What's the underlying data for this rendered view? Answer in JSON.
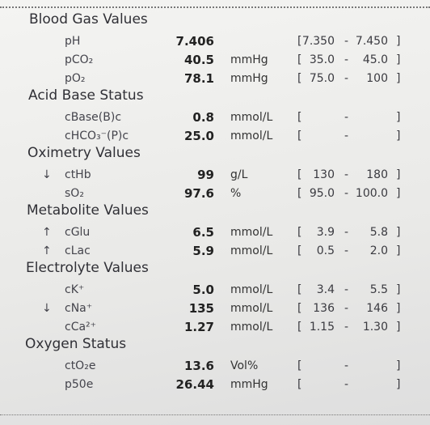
{
  "sections": [
    {
      "title": "Blood Gas Values",
      "rows": [
        {
          "label": "pH",
          "value": "7.406",
          "low": "7.350",
          "high": "7.450"
        },
        {
          "label": "pCO₂",
          "value": "40.5",
          "unit": "mmHg",
          "low": "35.0",
          "high": "45.0"
        },
        {
          "label": "pO₂",
          "value": "78.1",
          "unit": "mmHg",
          "low": "75.0",
          "high": "100"
        }
      ]
    },
    {
      "title": "Acid Base Status",
      "rows": [
        {
          "label": "cBase(B)c",
          "value": "0.8",
          "unit": "mmol/L"
        },
        {
          "label": "cHCO₃⁻(P)c",
          "value": "25.0",
          "unit": "mmol/L"
        }
      ]
    },
    {
      "title": "Oximetry Values",
      "rows": [
        {
          "flag": "↓",
          "label": "ctHb",
          "value": "99",
          "unit": "g/L",
          "low": "130",
          "high": "180"
        },
        {
          "label": "sO₂",
          "value": "97.6",
          "unit": "%",
          "low": "95.0",
          "high": "100.0"
        }
      ]
    },
    {
      "title": "Metabolite Values",
      "rows": [
        {
          "flag": "↑",
          "label": "cGlu",
          "value": "6.5",
          "unit": "mmol/L",
          "low": "3.9",
          "high": "5.8"
        },
        {
          "flag": "↑",
          "label": "cLac",
          "value": "5.9",
          "unit": "mmol/L",
          "low": "0.5",
          "high": "2.0"
        }
      ]
    },
    {
      "title": "Electrolyte Values",
      "rows": [
        {
          "label": "cK⁺",
          "value": "5.0",
          "unit": "mmol/L",
          "low": "3.4",
          "high": "5.5"
        },
        {
          "flag": "↓",
          "label": "cNa⁺",
          "value": "135",
          "unit": "mmol/L",
          "low": "136",
          "high": "146"
        },
        {
          "label": "cCa²⁺",
          "value": "1.27",
          "unit": "mmol/L",
          "low": "1.15",
          "high": "1.30"
        }
      ]
    },
    {
      "title": "Oxygen Status",
      "rows": [
        {
          "label": "ctO₂e",
          "value": "13.6",
          "unit": "Vol%"
        },
        {
          "label": "p50e",
          "value": "26.44",
          "unit": "mmHg"
        }
      ]
    }
  ]
}
